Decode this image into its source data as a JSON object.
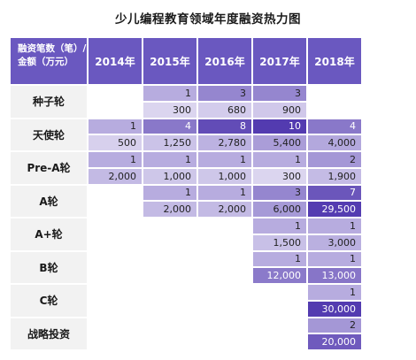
{
  "title": "少儿编程教育领域年度融资热力图",
  "corner_label_line1": "融资笔数（笔）/",
  "corner_label_line2": "金额（万元）",
  "colors": {
    "header": "#6a58c0",
    "row_label_bg": "#f2f2f2",
    "scale_low": "#f2effa",
    "scale_high": "#533bb0"
  },
  "chart_data": {
    "type": "heatmap",
    "title": "少儿编程教育领域年度融资热力图",
    "years": [
      "2014年",
      "2015年",
      "2016年",
      "2017年",
      "2018年"
    ],
    "rounds": [
      {
        "name": "种子轮",
        "count": [
          null,
          "1",
          "3",
          "3",
          null
        ],
        "amount": [
          null,
          "300",
          "680",
          "900",
          null
        ]
      },
      {
        "name": "天使轮",
        "count": [
          "1",
          "4",
          "8",
          "10",
          "4"
        ],
        "amount": [
          "500",
          "1,250",
          "2,780",
          "5,400",
          "4,000"
        ]
      },
      {
        "name": "Pre-A轮",
        "count": [
          "1",
          "1",
          "1",
          "1",
          "2"
        ],
        "amount": [
          "2,000",
          "1,000",
          "1,000",
          "300",
          "1,900"
        ]
      },
      {
        "name": "A轮",
        "count": [
          null,
          "1",
          "1",
          "3",
          "7"
        ],
        "amount": [
          null,
          "2,000",
          "2,000",
          "6,000",
          "29,500"
        ]
      },
      {
        "name": "A+轮",
        "count": [
          null,
          null,
          null,
          "1",
          "1"
        ],
        "amount": [
          null,
          null,
          null,
          "1,500",
          "3,000"
        ]
      },
      {
        "name": "B轮",
        "count": [
          null,
          null,
          null,
          "1",
          "1"
        ],
        "amount": [
          null,
          null,
          null,
          "12,000",
          "13,000"
        ]
      },
      {
        "name": "C轮",
        "count": [
          null,
          null,
          null,
          null,
          "1"
        ],
        "amount": [
          null,
          null,
          null,
          null,
          "30,000"
        ]
      },
      {
        "name": "战略投资",
        "count": [
          null,
          null,
          null,
          null,
          "2"
        ],
        "amount": [
          null,
          null,
          null,
          null,
          "20,000"
        ]
      }
    ]
  }
}
